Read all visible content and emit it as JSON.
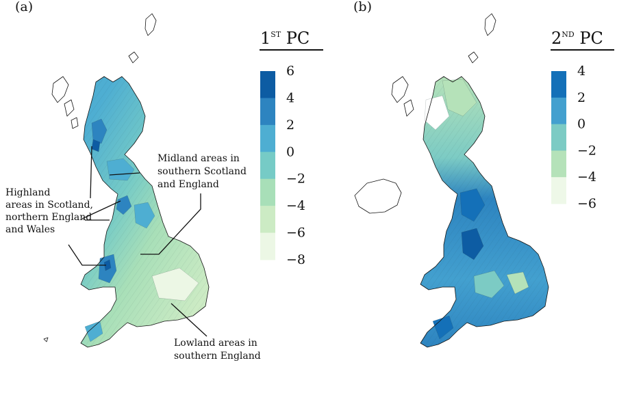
{
  "panels": [
    {
      "id": "a",
      "label": "(a)",
      "legend": {
        "title_main": "1",
        "title_sup": "ST",
        "title_rest": " PC",
        "ticks": [
          "6",
          "4",
          "2",
          "0",
          "−2",
          "−4",
          "−6",
          "−8"
        ],
        "colors": [
          "#0d5ca3",
          "#2d84c0",
          "#4eaed2",
          "#76cbc6",
          "#a8dfb8",
          "#ccebc4",
          "#ecf7e5"
        ]
      },
      "annotations": [
        {
          "id": "midland",
          "lines": [
            "Midland areas in",
            "southern Scotland",
            "and England"
          ]
        },
        {
          "id": "highland",
          "lines": [
            "Highland",
            "areas in Scotland,",
            "northern England",
            "and Wales"
          ]
        },
        {
          "id": "lowland",
          "lines": [
            "Lowland areas in",
            "southern England"
          ]
        }
      ]
    },
    {
      "id": "b",
      "label": "(b)",
      "legend": {
        "title_main": "2",
        "title_sup": "ND",
        "title_rest": " PC",
        "ticks": [
          "4",
          "2",
          "0",
          "−2",
          "−4",
          "−6"
        ],
        "colors": [
          "#1470b8",
          "#43a0cf",
          "#7ccbc4",
          "#b5e2b9",
          "#eef8e8"
        ]
      }
    }
  ]
}
